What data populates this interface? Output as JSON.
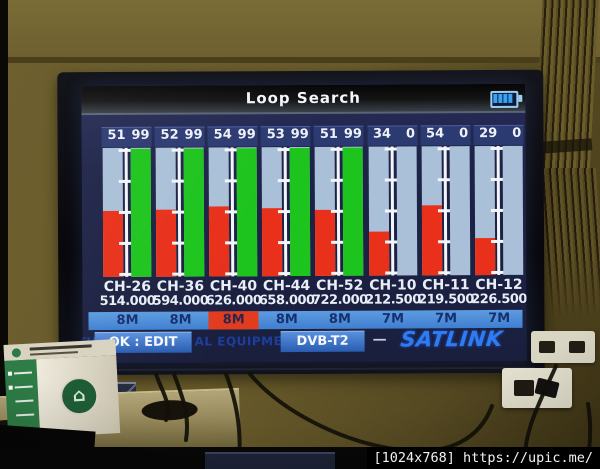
{
  "photo": {
    "watermark": "[1024x768] https://upic.me/"
  },
  "screen": {
    "title": "Loop Search",
    "battery": {
      "icon": "battery-icon",
      "segments": 4
    },
    "channels": [
      {
        "channel": "CH-26",
        "frequency": "514.000",
        "bandwidth": "8M",
        "strength": 51,
        "quality": 99,
        "selected": false
      },
      {
        "channel": "CH-36",
        "frequency": "594.000",
        "bandwidth": "8M",
        "strength": 52,
        "quality": 99,
        "selected": false
      },
      {
        "channel": "CH-40",
        "frequency": "626.000",
        "bandwidth": "8M",
        "strength": 54,
        "quality": 99,
        "selected": true
      },
      {
        "channel": "CH-44",
        "frequency": "658.000",
        "bandwidth": "8M",
        "strength": 53,
        "quality": 99,
        "selected": false
      },
      {
        "channel": "CH-52",
        "frequency": "722.000",
        "bandwidth": "8M",
        "strength": 51,
        "quality": 99,
        "selected": false
      },
      {
        "channel": "CH-10",
        "frequency": "212.500",
        "bandwidth": "7M",
        "strength": 34,
        "quality": 0,
        "selected": false
      },
      {
        "channel": "CH-11",
        "frequency": "219.500",
        "bandwidth": "7M",
        "strength": 54,
        "quality": 0,
        "selected": false
      },
      {
        "channel": "CH-12",
        "frequency": "226.500",
        "bandwidth": "7M",
        "strength": 29,
        "quality": 0,
        "selected": false
      }
    ],
    "footer": {
      "background_fragments": [
        "TH",
        "AL EQUIPMEN"
      ],
      "ok_label": "OK : EDIT",
      "standard_label": "DVB-T2",
      "separator": "—",
      "brand": "SATLINK"
    },
    "colors": {
      "screen_bg": "#1d2347",
      "bar_track": "#a9c0d8",
      "strength_fill": "#e8301a",
      "quality_fill": "#1dc41d",
      "value_box_bg": "#2c3a72",
      "bandwidth_strip_bg": "#4b8cd8",
      "bandwidth_selected_bg": "#e23c1e",
      "button_bg": "#2f6fc9",
      "brand_blue": "#2e7cf5"
    },
    "box_logo_icon": "⌂"
  }
}
